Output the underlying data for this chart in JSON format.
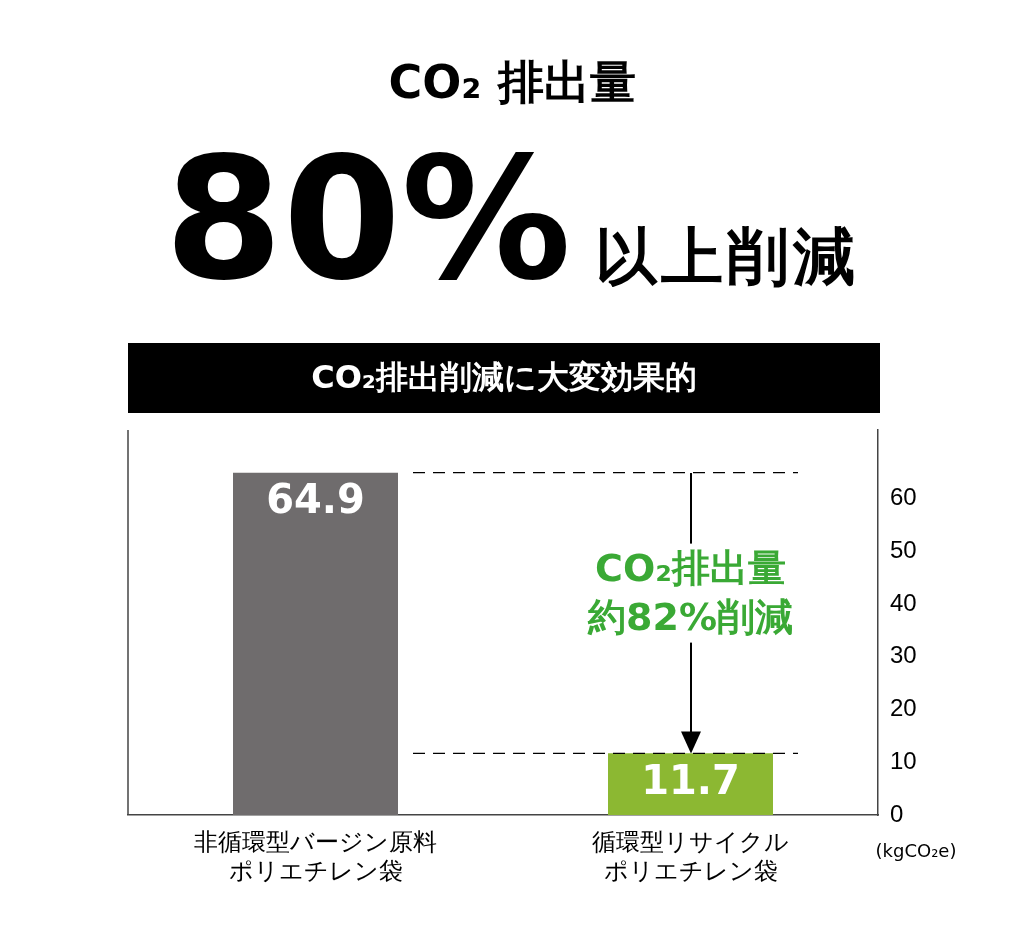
{
  "chart_data": {
    "type": "bar",
    "title": "CO₂ 排出量",
    "subtitle": "80%以上削減",
    "annotations": [
      "CO₂排出削減に大変効果的",
      "CO₂排出量約82%削減"
    ],
    "categories": [
      "非循環型バージン原料ポリエチレン袋",
      "循環型リサイクルポリエチレン袋"
    ],
    "values": [
      64.9,
      11.7
    ],
    "colors": [
      "#6f6c6d",
      "#8cb832"
    ],
    "ylabel": "(kgCO₂e)",
    "ylim": [
      0,
      73
    ],
    "yticks": [
      0,
      10,
      20,
      30,
      40,
      50,
      60
    ],
    "ref_lines": [
      {
        "axis": "y",
        "value": 64.9,
        "line_style": "dashed",
        "color": "#000000"
      },
      {
        "axis": "y",
        "value": 11.7,
        "line_style": "dashed",
        "color": "#000000"
      }
    ],
    "data_labels": true,
    "grid": false,
    "legend": false
  }
}
